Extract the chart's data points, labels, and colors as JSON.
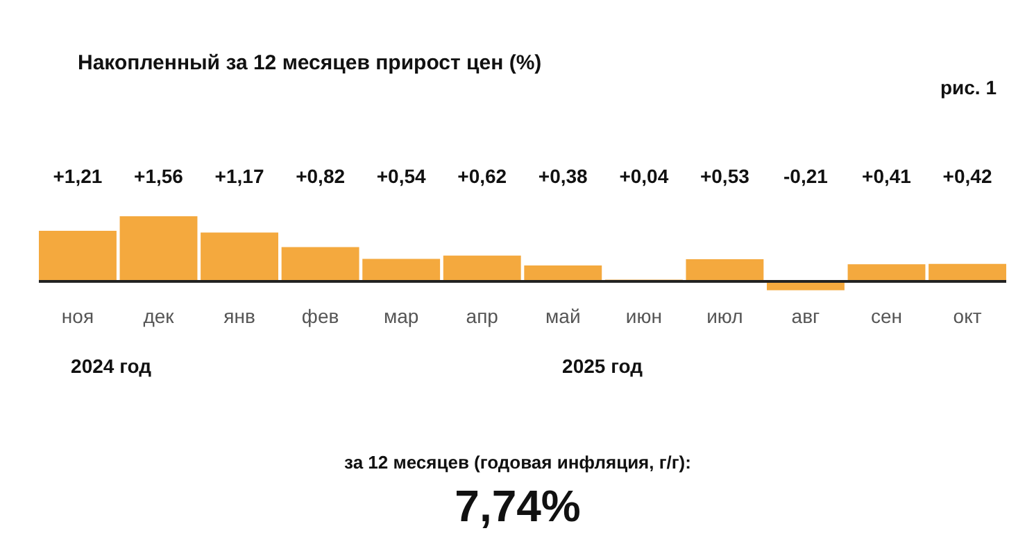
{
  "chart_data": {
    "type": "bar",
    "title": "Накопленный за 12 месяцев прирост цен (%)",
    "categories": [
      "ноя",
      "дек",
      "янв",
      "фев",
      "мар",
      "апр",
      "май",
      "июн",
      "июл",
      "авг",
      "сен",
      "окт"
    ],
    "values": [
      1.21,
      1.56,
      1.17,
      0.82,
      0.54,
      0.62,
      0.38,
      0.04,
      0.53,
      -0.21,
      0.41,
      0.42
    ],
    "value_labels": [
      "+1,21",
      "+1,56",
      "+1,17",
      "+0,82",
      "+0,54",
      "+0,62",
      "+0,38",
      "+0,04",
      "+0,53",
      "-0,21",
      "+0,41",
      "+0,42"
    ],
    "color": "#f4a93e",
    "annotations": [
      "рис. 1",
      "2024 год",
      "2025 год",
      "за 12 месяцев (годовая инфляция, г/г):",
      "7,74%"
    ]
  }
}
